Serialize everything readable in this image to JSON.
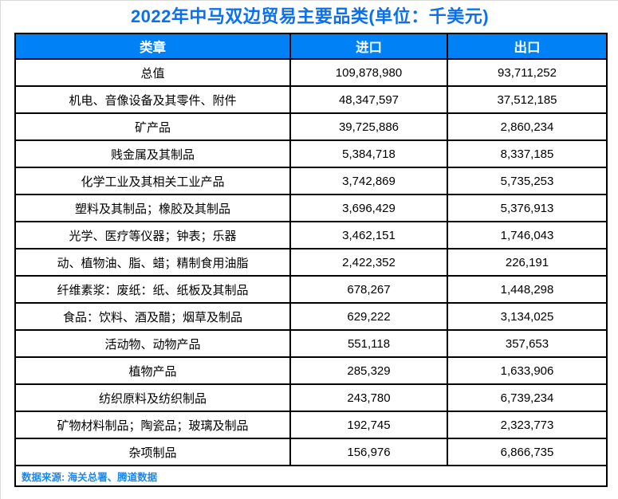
{
  "title": "2022年中马双边贸易主要品类(单位：千美元)",
  "table": {
    "columns": [
      "类章",
      "进口",
      "出口"
    ],
    "rows": [
      [
        "总值",
        "109,878,980",
        "93,711,252"
      ],
      [
        "机电、音像设备及其零件、附件",
        "48,347,597",
        "37,512,185"
      ],
      [
        "矿产品",
        "39,725,886",
        "2,860,234"
      ],
      [
        "贱金属及其制品",
        "5,384,718",
        "8,337,185"
      ],
      [
        "化学工业及其相关工业产品",
        "3,742,869",
        "5,735,253"
      ],
      [
        "塑料及其制品；橡胶及其制品",
        "3,696,429",
        "5,376,913"
      ],
      [
        "光学、医疗等仪器；钟表；乐器",
        "3,462,151",
        "1,746,043"
      ],
      [
        "动、植物油、脂、蜡；精制食用油脂",
        "2,422,352",
        "226,191"
      ],
      [
        "纤维素浆：废纸：纸、纸板及其制品",
        "678,267",
        "1,448,298"
      ],
      [
        "食品：饮料、酒及醋；烟草及制品",
        "629,222",
        "3,134,025"
      ],
      [
        "活动物、动物产品",
        "551,118",
        "357,653"
      ],
      [
        "植物产品",
        "285,329",
        "1,633,906"
      ],
      [
        "纺织原料及纺织制品",
        "243,780",
        "6,739,234"
      ],
      [
        "矿物材料制品；陶瓷品；玻璃及制品",
        "192,745",
        "2,323,773"
      ],
      [
        "杂项制品",
        "156,976",
        "6,866,735"
      ]
    ],
    "source_note": "数据来源: 海关总署、腾道数据"
  },
  "colors": {
    "title": "#0b70ee",
    "header_bg": "#0082f6",
    "header_text": "#ffffff",
    "source_text": "#1e87e8",
    "border": "#000000"
  },
  "chart_data": {
    "type": "table",
    "title": "2022年中马双边贸易主要品类(单位：千美元)",
    "columns": [
      "类章",
      "进口",
      "出口"
    ],
    "categories": [
      "总值",
      "机电、音像设备及其零件、附件",
      "矿产品",
      "贱金属及其制品",
      "化学工业及其相关工业产品",
      "塑料及其制品；橡胶及其制品",
      "光学、医疗等仪器；钟表；乐器",
      "动、植物油、脂、蜡；精制食用油脂",
      "纤维素浆：废纸：纸、纸板及其制品",
      "食品：饮料、酒及醋；烟草及制品",
      "活动物、动物产品",
      "植物产品",
      "纺织原料及纺织制品",
      "矿物材料制品；陶瓷品；玻璃及制品",
      "杂项制品"
    ],
    "series": [
      {
        "name": "进口",
        "values": [
          109878980,
          48347597,
          39725886,
          5384718,
          3742869,
          3696429,
          3462151,
          2422352,
          678267,
          629222,
          551118,
          285329,
          243780,
          192745,
          156976
        ]
      },
      {
        "name": "出口",
        "values": [
          93711252,
          37512185,
          2860234,
          8337185,
          5735253,
          5376913,
          1746043,
          226191,
          1448298,
          3134025,
          357653,
          1633906,
          6739234,
          2323773,
          6866735
        ]
      }
    ],
    "source": "数据来源: 海关总署、腾道数据"
  }
}
